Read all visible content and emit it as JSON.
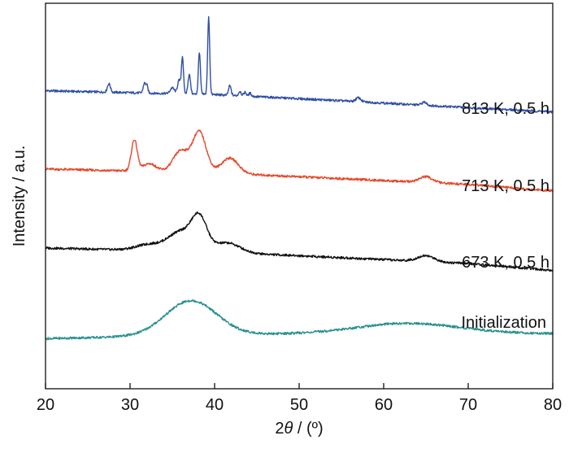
{
  "chart_data": {
    "type": "line",
    "xlabel": "2θ / (º)",
    "xlabel_parts": {
      "prefix": "2",
      "symbol": "θ",
      "suffix": " / (º)"
    },
    "ylabel": "Intensity / a.u.",
    "xlim": [
      20,
      80
    ],
    "x_ticks": [
      20,
      30,
      40,
      50,
      60,
      70,
      80
    ],
    "y_axis_ticks": "none",
    "grid": false,
    "legend": "none",
    "series": [
      {
        "name": "813 K, 0.5 h",
        "color": "#2f4fa6",
        "baseline": [
          [
            20,
            0.773
          ],
          [
            40,
            0.763
          ],
          [
            55,
            0.747
          ],
          [
            65,
            0.735
          ],
          [
            80,
            0.718
          ]
        ],
        "peaks": [
          [
            27.5,
            0.022,
            0.18
          ],
          [
            31.7,
            0.025,
            0.15
          ],
          [
            32.0,
            0.018,
            0.12
          ],
          [
            35.0,
            0.015,
            0.25
          ],
          [
            35.8,
            0.035,
            0.18
          ],
          [
            36.2,
            0.095,
            0.12
          ],
          [
            37.0,
            0.05,
            0.15
          ],
          [
            38.2,
            0.11,
            0.12
          ],
          [
            39.3,
            0.2,
            0.12
          ],
          [
            41.8,
            0.025,
            0.15
          ],
          [
            43.0,
            0.012,
            0.15
          ],
          [
            43.6,
            0.01,
            0.15
          ],
          [
            44.2,
            0.008,
            0.15
          ],
          [
            57.0,
            0.01,
            0.3
          ],
          [
            64.8,
            0.008,
            0.3
          ]
        ]
      },
      {
        "name": "713 K, 0.5 h",
        "color": "#e5482a",
        "baseline": [
          [
            20,
            0.57
          ],
          [
            40,
            0.56
          ],
          [
            60,
            0.54
          ],
          [
            70,
            0.53
          ],
          [
            80,
            0.513
          ]
        ],
        "peaks": [
          [
            30.5,
            0.08,
            0.35
          ],
          [
            32.3,
            0.02,
            0.8
          ],
          [
            36.0,
            0.055,
            0.9
          ],
          [
            38.2,
            0.105,
            0.8
          ],
          [
            41.8,
            0.04,
            1.0
          ],
          [
            65.0,
            0.015,
            0.8
          ]
        ]
      },
      {
        "name": "673 K, 0.5 h",
        "color": "#111111",
        "baseline": [
          [
            20,
            0.365
          ],
          [
            40,
            0.355
          ],
          [
            60,
            0.335
          ],
          [
            70,
            0.325
          ],
          [
            80,
            0.307
          ]
        ],
        "peaks": [
          [
            32.2,
            0.015,
            1.5
          ],
          [
            36.0,
            0.05,
            1.5
          ],
          [
            38.2,
            0.08,
            0.9
          ],
          [
            41.5,
            0.025,
            1.5
          ],
          [
            65.0,
            0.015,
            1.0
          ]
        ]
      },
      {
        "name": "Initialization",
        "color": "#2a9090",
        "baseline": [
          [
            20,
            0.13
          ],
          [
            40,
            0.14
          ],
          [
            60,
            0.145
          ],
          [
            80,
            0.143
          ]
        ],
        "peaks": [
          [
            37.2,
            0.09,
            3.0
          ],
          [
            63.0,
            0.025,
            6.0
          ]
        ]
      }
    ]
  }
}
